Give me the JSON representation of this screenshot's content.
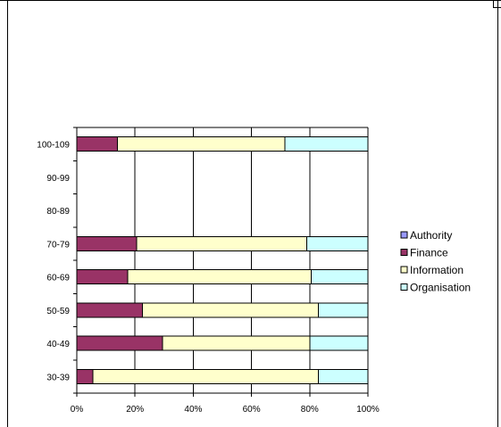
{
  "chart_data": {
    "type": "bar",
    "orientation": "horizontal",
    "stacked": "percent",
    "categories": [
      "30-39",
      "40-49",
      "50-59",
      "60-69",
      "70-79",
      "80-89",
      "90-99",
      "100-109"
    ],
    "series": [
      {
        "name": "Authority",
        "color": "#9999ff",
        "values": [
          0,
          0,
          0,
          0,
          0,
          0,
          0,
          0
        ]
      },
      {
        "name": "Finance",
        "color": "#993366",
        "values": [
          5.5,
          29.5,
          22.5,
          17.5,
          20.5,
          0,
          0,
          14
        ]
      },
      {
        "name": "Information",
        "color": "#ffffcc",
        "values": [
          77.5,
          50.5,
          60.5,
          63,
          58.5,
          0,
          0,
          57.5
        ]
      },
      {
        "name": "Organisation",
        "color": "#ccffff",
        "values": [
          17,
          20,
          17,
          19.5,
          21,
          0,
          0,
          28.5
        ]
      }
    ],
    "xlim": [
      0,
      100
    ],
    "x_ticks": [
      "0%",
      "20%",
      "40%",
      "60%",
      "80%",
      "100%"
    ],
    "grid": "vertical",
    "legend": "right"
  }
}
